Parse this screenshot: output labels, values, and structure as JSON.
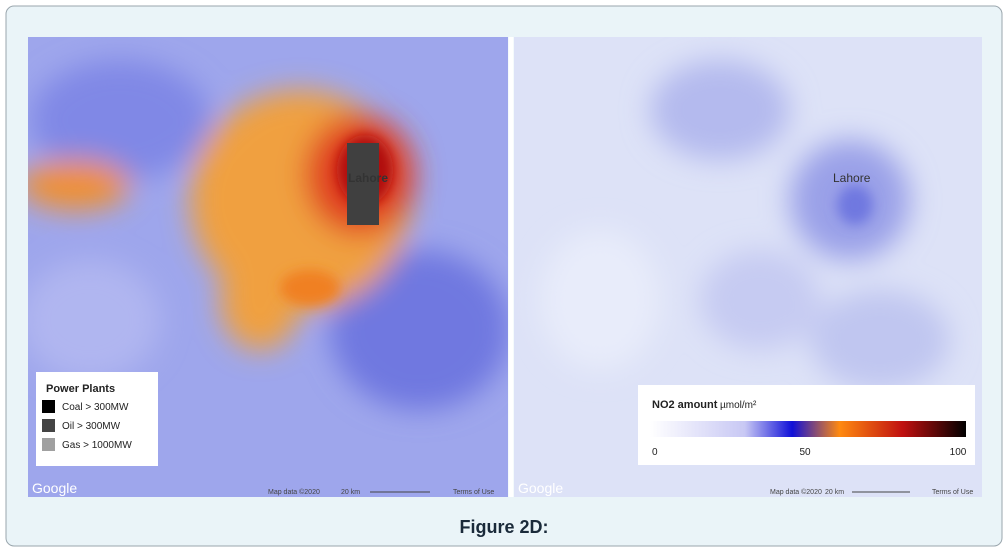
{
  "left_map": {
    "labels": {
      "city": "Lahore"
    },
    "attribution": {
      "logo": "Google",
      "data": "Map data ©2020",
      "scale": "20 km",
      "terms": "Terms of Use"
    },
    "legend": {
      "title": "Power Plants",
      "items": [
        {
          "label": "Coal > 300MW",
          "color": "#000000"
        },
        {
          "label": "Oil > 300MW",
          "color": "#444444"
        },
        {
          "label": "Gas > 1000MW",
          "color": "#a0a0a0"
        }
      ]
    }
  },
  "right_map": {
    "labels": {
      "city": "Lahore"
    },
    "attribution": {
      "logo": "Google",
      "data": "Map data ©2020",
      "scale": "20 km",
      "terms": "Terms of Use"
    },
    "legend": {
      "title": "NO2 amount",
      "unit": "µmol/m²",
      "range": [
        0,
        100
      ],
      "ticks": [
        0,
        50,
        100
      ]
    }
  },
  "caption": "Figure 2D:"
}
